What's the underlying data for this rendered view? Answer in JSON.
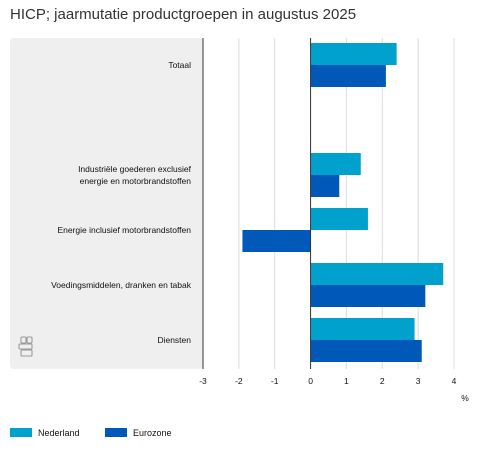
{
  "chart_data": {
    "type": "bar",
    "orientation": "horizontal",
    "title": "HICP; jaarmutatie productgroepen in augustus 2025",
    "xlabel": "%",
    "xlim": [
      -3,
      4
    ],
    "xticks": [
      "-3",
      "-2",
      "-1",
      "0",
      "1",
      "2",
      "3",
      "4"
    ],
    "grid": true,
    "legend_placement": "bottom-left",
    "categories": [
      "Totaal",
      "",
      "Industriële goederen exclusief\nenergie en motorbrandstoffen",
      "Energie inclusief motorbrandstoffen",
      "Voedingsmiddelen, dranken en tabak",
      "Diensten"
    ],
    "series": [
      {
        "name": "Nederland",
        "color": "#00a1cd",
        "values": [
          2.4,
          null,
          1.4,
          1.6,
          3.7,
          2.9
        ]
      },
      {
        "name": "Eurozone",
        "color": "#0058b8",
        "values": [
          2.1,
          null,
          0.8,
          -1.9,
          3.2,
          3.1
        ]
      }
    ]
  },
  "logo": {
    "icon": "cbs-logo-icon"
  }
}
